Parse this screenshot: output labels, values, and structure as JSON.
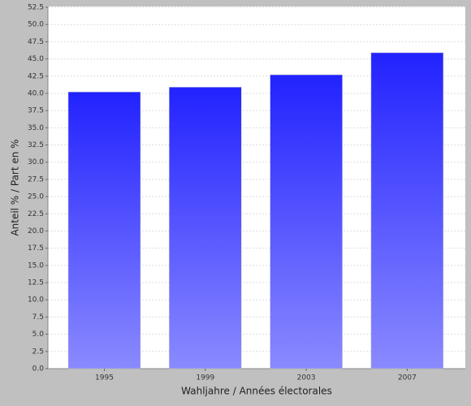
{
  "chart_data": {
    "type": "bar",
    "x_label": "Wahljahre / Années électorales",
    "y_label": "Anteil % / Part en %",
    "categories": [
      "1995",
      "1999",
      "2003",
      "2007"
    ],
    "values": [
      40.2,
      40.9,
      42.7,
      45.9
    ],
    "color_top": "#2222ff",
    "color_bottom": "#8a8aff",
    "ylim": [
      0,
      52.5
    ],
    "yticks": [
      {
        "value": 0,
        "label": "0.0"
      },
      2.5,
      {
        "value": 5,
        "label": "5.0"
      },
      7.5,
      {
        "value": 10,
        "label": "10.0"
      },
      12.5,
      {
        "value": 15,
        "label": "15.0"
      },
      17.5,
      {
        "value": 20,
        "label": "20.0"
      },
      22.5,
      {
        "value": 25,
        "label": "25.0"
      },
      27.5,
      {
        "value": 30,
        "label": "30.0"
      },
      32.5,
      {
        "value": 35,
        "label": "35.0"
      },
      37.5,
      {
        "value": 40,
        "label": "40.0"
      },
      42.5,
      {
        "value": 45,
        "label": "45.0"
      },
      47.5,
      {
        "value": 50,
        "label": "50.0"
      },
      52.5
    ],
    "grid": true
  }
}
